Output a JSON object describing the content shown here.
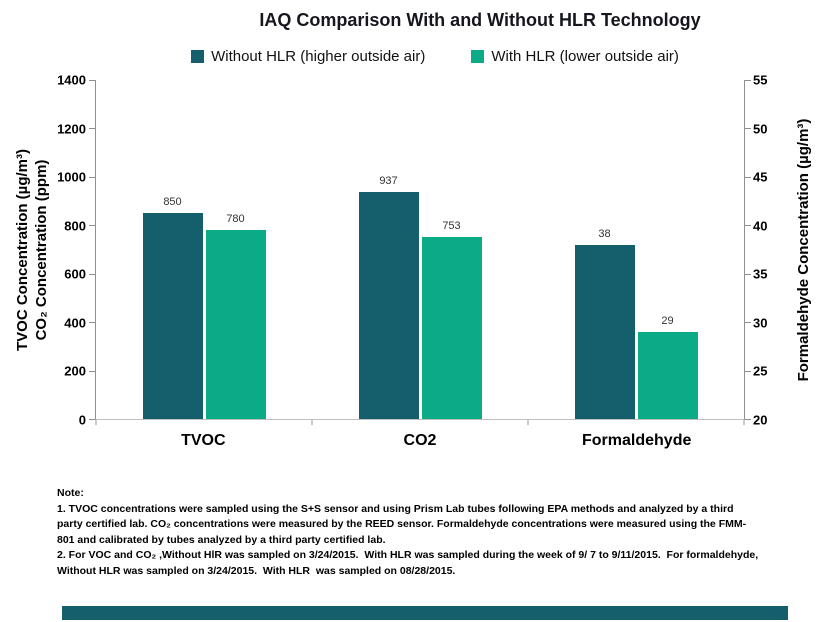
{
  "title": "IAQ Comparison With and Without HLR Technology",
  "legend": [
    {
      "label": "Without HLR (higher outside air)",
      "color": "#155F6D"
    },
    {
      "label": "With HLR (lower outside air)",
      "color": "#0CAB87"
    }
  ],
  "chart_data": {
    "type": "bar",
    "title": "IAQ Comparison With and Without HLR Technology",
    "grid": false,
    "legend_position": "top",
    "categories": [
      {
        "label": "TVOC",
        "axis": "left"
      },
      {
        "label": "CO2",
        "axis": "left"
      },
      {
        "label": "Formaldehyde",
        "axis": "right"
      }
    ],
    "series": [
      {
        "name": "Without HLR (higher outside air)",
        "color": "#155F6D",
        "values": [
          850,
          937,
          38
        ]
      },
      {
        "name": "With HLR (lower outside air)",
        "color": "#0CAB87",
        "values": [
          780,
          753,
          29
        ]
      }
    ],
    "left_axis": {
      "label_line1": "TVOC Concentration (µg/m³)",
      "label_line2": "CO₂ Concentration (ppm)",
      "min": 0,
      "max": 1400,
      "ticks": [
        0,
        200,
        400,
        600,
        800,
        1000,
        1200,
        1400
      ]
    },
    "right_axis": {
      "label": "Formaldehyde Concentration (µg/m³)",
      "min": 20,
      "max": 55,
      "ticks": [
        20,
        25,
        30,
        35,
        40,
        45,
        50,
        55
      ]
    }
  },
  "note": {
    "heading": "Note:",
    "paragraph1": "1. TVOC concentrations were sampled using the S+S sensor and using Prism Lab tubes following EPA methods and analyzed by a third party certified lab. CO₂ concentrations were measured by the REED sensor. Formaldehyde concentrations were measured using the FMM-801 and calibrated by tubes analyzed by a third party certified lab.",
    "paragraph2": "2. For VOC and CO₂ ,Without HlR was sampled on 3/24/2015.  With HLR was sampled during the week of 9/ 7 to 9/11/2015.  For formaldehyde, Without HLR was sampled on 3/24/2015.  With HLR  was sampled on 08/28/2015."
  },
  "footer_accent_color": "#155F6D"
}
